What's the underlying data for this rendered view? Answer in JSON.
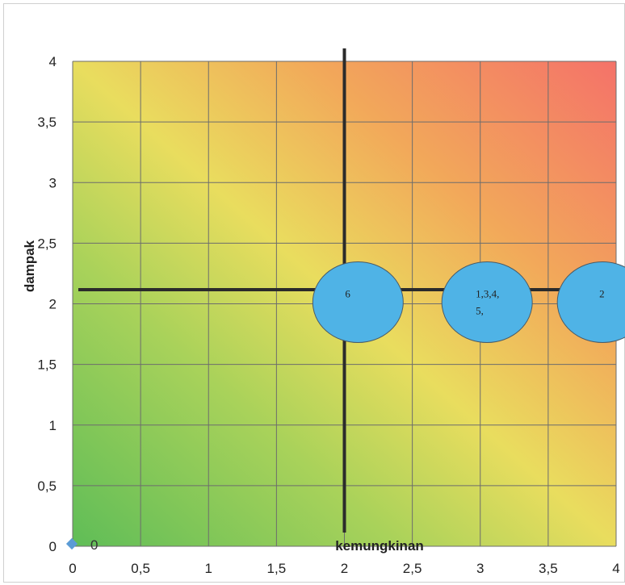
{
  "chart_data": {
    "type": "bubble",
    "xlabel": "kemungkinan",
    "ylabel": "dampak",
    "xlim": [
      0,
      4
    ],
    "ylim": [
      0,
      4
    ],
    "x_ticks": [
      "0",
      "0,5",
      "1",
      "1,5",
      "2",
      "2,5",
      "3",
      "3,5",
      "4"
    ],
    "y_ticks": [
      "0",
      "0,5",
      "1",
      "1,5",
      "2",
      "2,5",
      "3",
      "3,5",
      "4"
    ],
    "grid": true,
    "background": "green-to-red gradient (low x,y green → high x,y red)",
    "quadrant_lines": {
      "x": 2,
      "y": 2.1
    },
    "bubbles": [
      {
        "label": "6",
        "x": 2.1,
        "y": 2.0
      },
      {
        "label_lines": [
          "1,3,4,",
          "5,"
        ],
        "x": 3.05,
        "y": 2.0
      },
      {
        "label": "2",
        "x": 3.9,
        "y": 2.0
      }
    ],
    "legend": {
      "label": "0",
      "placement": "bottom-left"
    }
  },
  "colors": {
    "bubble_fill": "#4fb3e6",
    "bubble_stroke": "#4a5b66",
    "quadrant_line": "#2b2b2b",
    "grid": "#6d6d6d",
    "legend_marker": "#5b9bd5",
    "gradient_green": "#6cc050",
    "gradient_yellow": "#e8dc5a",
    "gradient_red": "#f27a6e"
  }
}
